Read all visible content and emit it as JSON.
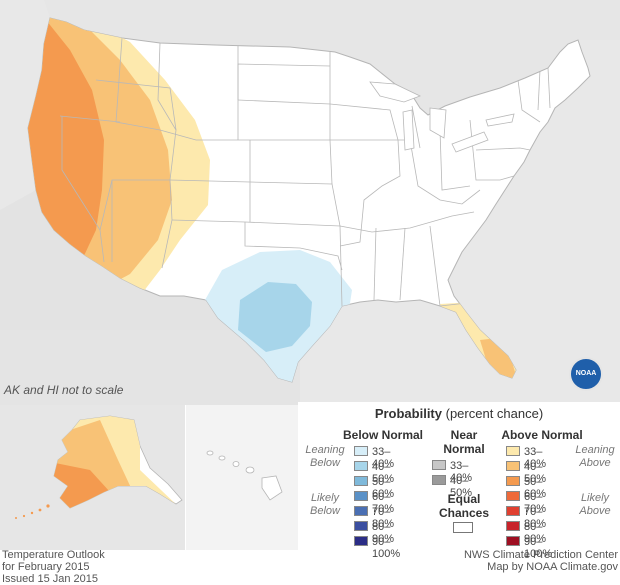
{
  "map": {
    "scale_note": "AK and HI not to scale"
  },
  "legend": {
    "title_bold": "Probability",
    "title_rest": " (percent chance)",
    "below_normal": {
      "heading": "Below Normal",
      "leaning": "Leaning Below",
      "likely": "Likely Below",
      "ranges": [
        "33–40%",
        "40–50%",
        "50–60%",
        "60–70%",
        "70–80%",
        "80–90%",
        "90–100%"
      ],
      "colors": [
        "#d7eef8",
        "#a7d5ea",
        "#7fb9da",
        "#5a91c7",
        "#4a6fb3",
        "#3b4fa0",
        "#2b2d86"
      ]
    },
    "near_normal": {
      "heading_1": "Near",
      "heading_2": "Normal",
      "ranges": [
        "33–40%",
        "40–50%"
      ],
      "colors": [
        "#c7c7c7",
        "#9a9a9a"
      ]
    },
    "equal_chances": {
      "line_1": "Equal",
      "line_2": "Chances"
    },
    "above_normal": {
      "heading": "Above Normal",
      "leaning": "Leaning Above",
      "likely": "Likely Above",
      "ranges": [
        "33–40%",
        "40–50%",
        "50–60%",
        "60–70%",
        "70–80%",
        "80–90%",
        "90–100%"
      ],
      "colors": [
        "#fde9ad",
        "#f8c276",
        "#f49a4f",
        "#ee6a3a",
        "#e04030",
        "#c8232b",
        "#9e0f22"
      ]
    }
  },
  "footer": {
    "left_1": "Temperature Outlook",
    "left_2": "for February 2015",
    "left_3": "Issued 15 Jan 2015",
    "right_1": "NWS Climate Prediction Center",
    "right_2": "Map by NOAA Climate.gov"
  },
  "logo": {
    "text": "NOAA",
    "icon": "noaa-logo-icon"
  }
}
